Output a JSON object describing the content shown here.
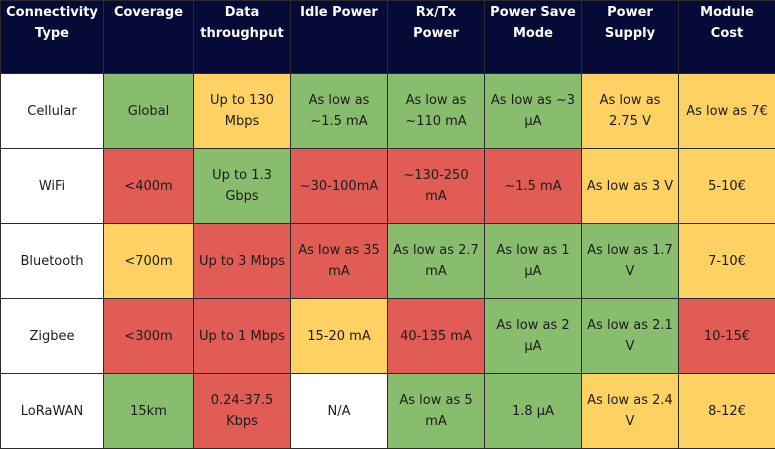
{
  "colors": {
    "header_bg": "#050a36",
    "good": "#88bd6e",
    "bad": "#e05c55",
    "medium": "#fdd263",
    "neutral": "#ffffff"
  },
  "headers": [
    "Connectivity Type",
    "Coverage",
    "Data throughput",
    "Idle Power",
    "Rx/Tx Power",
    "Power Save Mode",
    "Power Supply",
    "Module Cost"
  ],
  "rows": [
    {
      "name": "Cellular",
      "cells": [
        {
          "text": "Global",
          "rating": "good"
        },
        {
          "text": "Up to 130 Mbps",
          "rating": "medium"
        },
        {
          "text": "As low as ~1.5 mA",
          "rating": "good"
        },
        {
          "text": "As low as ~110 mA",
          "rating": "good"
        },
        {
          "text": "As low as ~3 µA",
          "rating": "good"
        },
        {
          "text": "As low as 2.75 V",
          "rating": "medium"
        },
        {
          "text": "As low as 7€",
          "rating": "medium"
        }
      ]
    },
    {
      "name": "WiFi",
      "cells": [
        {
          "text": "<400m",
          "rating": "bad"
        },
        {
          "text": "Up to 1.3 Gbps",
          "rating": "good"
        },
        {
          "text": "~30-100mA",
          "rating": "bad"
        },
        {
          "text": "~130-250 mA",
          "rating": "bad"
        },
        {
          "text": "~1.5 mA",
          "rating": "bad"
        },
        {
          "text": "As low as 3 V",
          "rating": "medium"
        },
        {
          "text": "5-10€",
          "rating": "medium"
        }
      ]
    },
    {
      "name": "Bluetooth",
      "cells": [
        {
          "text": "<700m",
          "rating": "medium"
        },
        {
          "text": "Up to 3 Mbps",
          "rating": "bad"
        },
        {
          "text": "As low as 35 mA",
          "rating": "bad"
        },
        {
          "text": "As low as 2.7 mA",
          "rating": "good"
        },
        {
          "text": "As low as 1 µA",
          "rating": "good"
        },
        {
          "text": "As low as 1.7 V",
          "rating": "good"
        },
        {
          "text": "7-10€",
          "rating": "medium"
        }
      ]
    },
    {
      "name": "Zigbee",
      "cells": [
        {
          "text": "<300m",
          "rating": "bad"
        },
        {
          "text": "Up to 1 Mbps",
          "rating": "bad"
        },
        {
          "text": "15-20 mA",
          "rating": "medium"
        },
        {
          "text": "40-135 mA",
          "rating": "bad"
        },
        {
          "text": "As low as 2 µA",
          "rating": "good"
        },
        {
          "text": "As low as 2.1 V",
          "rating": "good"
        },
        {
          "text": "10-15€",
          "rating": "bad"
        }
      ]
    },
    {
      "name": "LoRaWAN",
      "cells": [
        {
          "text": "15km",
          "rating": "good"
        },
        {
          "text": "0.24-37.5 Kbps",
          "rating": "bad"
        },
        {
          "text": "N/A",
          "rating": "neutral"
        },
        {
          "text": "As low as 5 mA",
          "rating": "good"
        },
        {
          "text": "1.8 µA",
          "rating": "good"
        },
        {
          "text": "As low as 2.4 V",
          "rating": "medium"
        },
        {
          "text": "8-12€",
          "rating": "medium"
        }
      ]
    }
  ]
}
